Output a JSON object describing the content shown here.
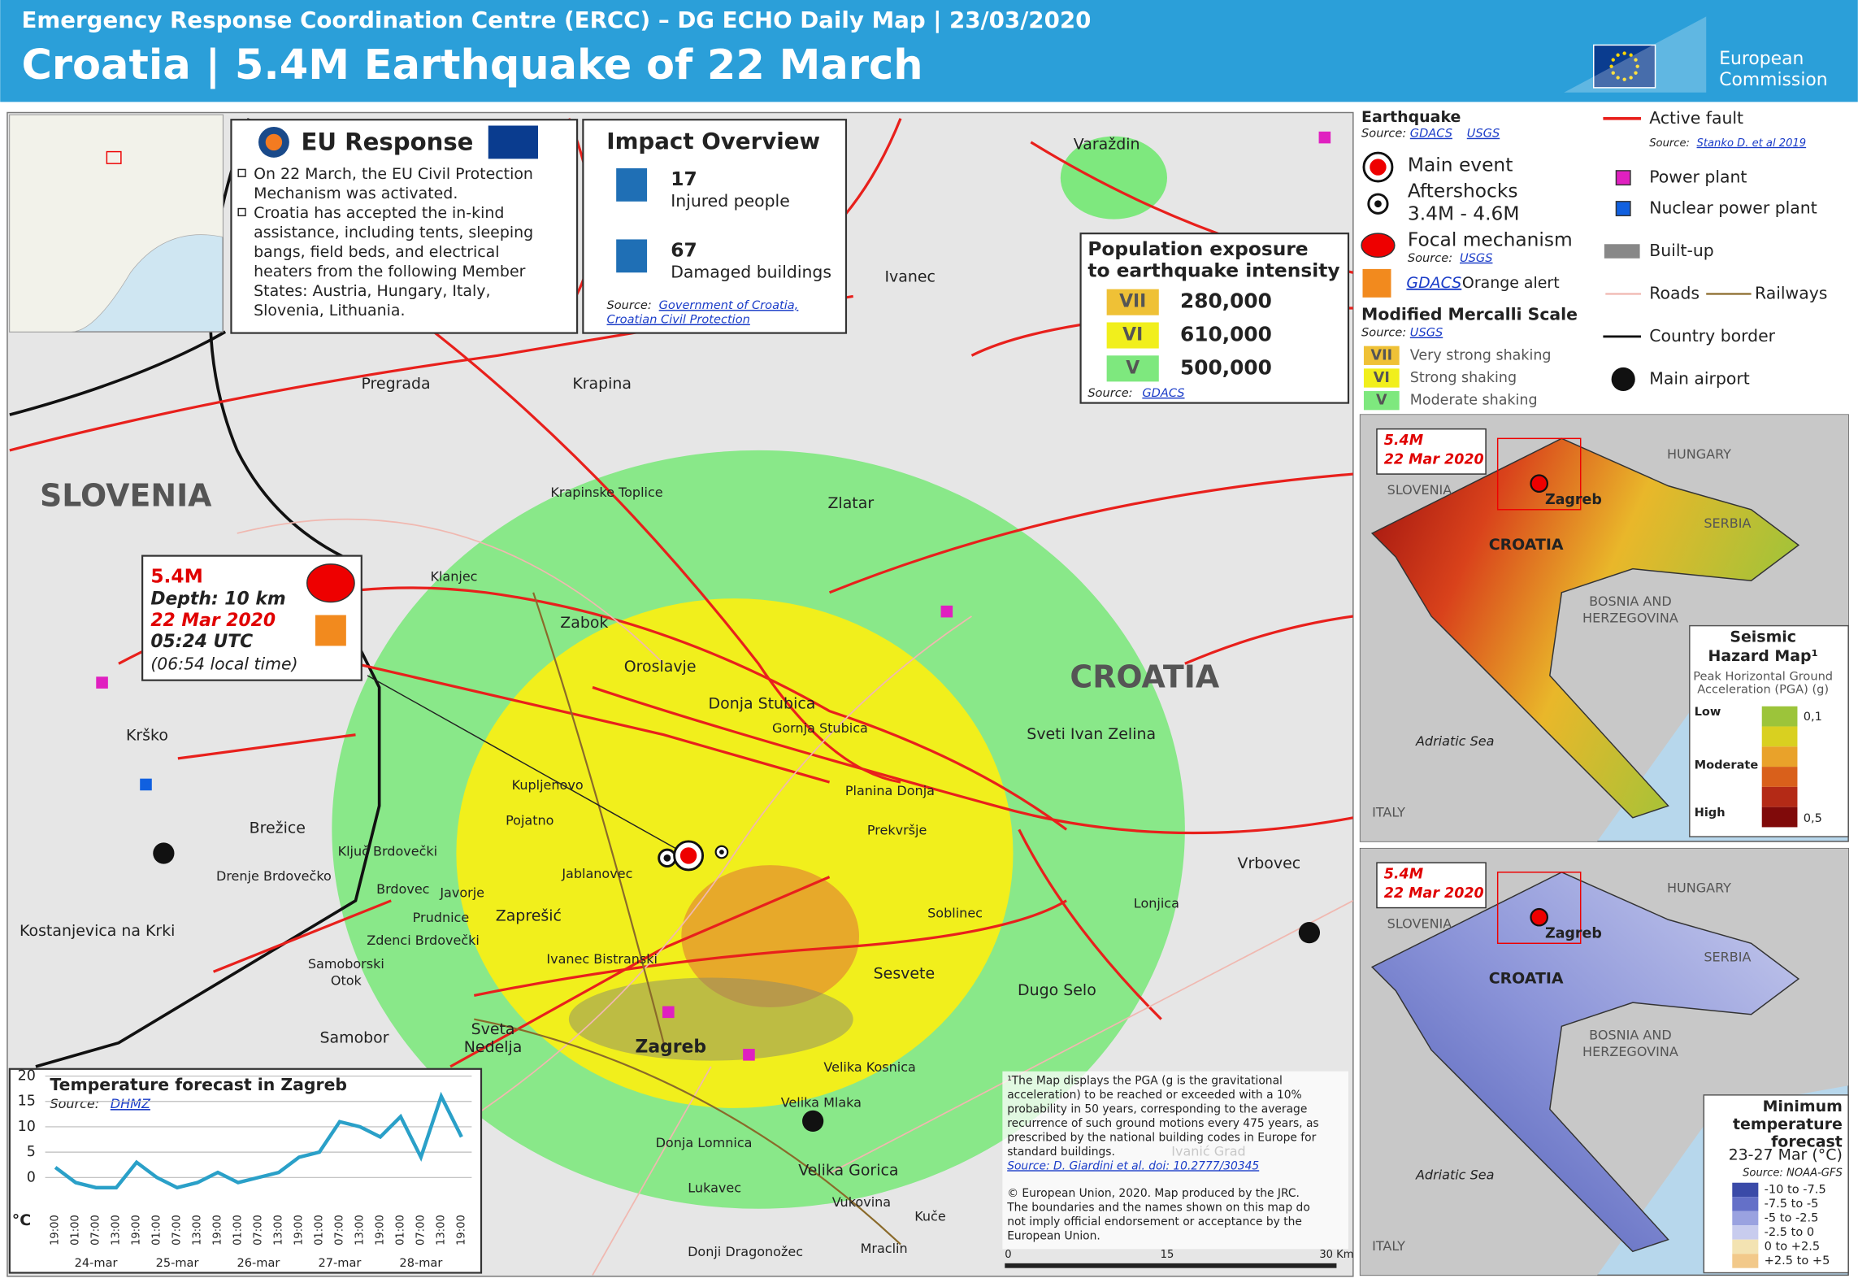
{
  "header": {
    "agency": "Emergency Response Coordination Centre (ERCC) – DG ECHO Daily Map | 23/03/2020",
    "title": "Croatia | 5.4M Earthquake of 22 March",
    "logo": [
      "European",
      "Commission"
    ]
  },
  "eu_response": {
    "title": "EU Response",
    "lines": [
      "On 22 March, the EU Civil Protection",
      "Mechanism was activated.",
      "Croatia has accepted the in-kind",
      "assistance, including tents, sleeping",
      "bangs, field beds, and electrical",
      "heaters from the following Member",
      "States: Austria, Hungary, Italy,",
      "Slovenia, Lithuania."
    ]
  },
  "impact_overview": {
    "title": "Impact Overview",
    "items": [
      {
        "value": "17",
        "label": "Injured people"
      },
      {
        "value": "67",
        "label": "Damaged buildings"
      }
    ],
    "source_label": "Source:",
    "sources": [
      "Government of Croatia,",
      "Croatian Civil Protection"
    ]
  },
  "exposure": {
    "title": [
      "Population exposure",
      "to earthquake intensity"
    ],
    "rows": [
      {
        "intensity": "VII",
        "population": "280,000"
      },
      {
        "intensity": "VI",
        "population": "610,000"
      },
      {
        "intensity": "V",
        "population": "500,000"
      }
    ],
    "source_label": "Source:",
    "source": "GDACS"
  },
  "event_box": {
    "magnitude": "5.4M",
    "depth": "Depth: 10 km",
    "date": "22 Mar 2020",
    "utc": "05:24 UTC",
    "local": "(06:54 local time)"
  },
  "countries": [
    "SLOVENIA",
    "CROATIA"
  ],
  "places": [
    "Varaždin",
    "Ivanec",
    "Pregrada",
    "Krapina",
    "Krapinske Toplice",
    "Zlatar",
    "Klanjec",
    "Zabok",
    "Oroslavje",
    "Donja Stubica",
    "Gornja Stubica",
    "Sveti Ivan Zelina",
    "Krško",
    "Kupljenovo",
    "Planina Donja",
    "Pojatno",
    "Brežice",
    "Prekvršje",
    "Ključ Brdovečki",
    "Jablanovec",
    "Drenje Brdovečko",
    "Brdovec",
    "Javorje",
    "Vrbovec",
    "Prudnice",
    "Zaprešić",
    "Soblinec",
    "Lonjica",
    "Kostanjevica na Krki",
    "Zdenci Brdovečki",
    "Ivanec Bistranski",
    "Samoborski",
    "Otok",
    "Sesvete",
    "Dugo Selo",
    "Sveta",
    "Nedelja",
    "Samobor",
    "Zagreb",
    "Velika Kosnica",
    "Velika Mlaka",
    "Donja Lomnica",
    "Velika Gorica",
    "Lukavec",
    "Vukovina",
    "Kuče",
    "Mraclin",
    "Donji Dragonožec",
    "Ivanić Grad"
  ],
  "legend": {
    "earthquake": {
      "title": "Earthquake",
      "source_label": "Source:",
      "sources": [
        "GDACS",
        "USGS"
      ],
      "main": "Main event",
      "aftershocks": [
        "Aftershocks",
        "3.4M - 4.6M"
      ],
      "focal": "Focal mechanism",
      "focal_source": "USGS",
      "alert_link": "GDACS",
      "alert": "Orange alert"
    },
    "mercalli": {
      "title": "Modified Mercalli Scale",
      "source": "USGS",
      "classes": [
        {
          "code": "VII",
          "label": "Very strong shaking"
        },
        {
          "code": "VI",
          "label": "Strong shaking"
        },
        {
          "code": "V",
          "label": "Moderate shaking"
        }
      ]
    },
    "features": {
      "fault": "Active fault",
      "fault_source": "Stanko D. et al 2019",
      "power": "Power plant",
      "nuclear": "Nuclear power plant",
      "builtup": "Built-up",
      "roads": "Roads",
      "railways": "Railways",
      "border": "Country border",
      "airport": "Main airport"
    }
  },
  "temperature_chart": {
    "title": "Temperature forecast in Zagreb",
    "source_label": "Source:",
    "source": "DHMZ",
    "unit": "°C",
    "x": [
      "19:00",
      "01:00",
      "07:00",
      "13:00",
      "19:00",
      "01:00",
      "07:00",
      "13:00",
      "19:00",
      "01:00",
      "07:00",
      "13:00",
      "19:00",
      "01:00",
      "07:00",
      "13:00",
      "19:00",
      "01:00",
      "07:00",
      "13:00",
      "19:00"
    ],
    "values": [
      2,
      -1,
      -2,
      -2,
      3,
      0,
      -2,
      -1,
      1,
      -1,
      0,
      1,
      4,
      5,
      11,
      10,
      8,
      12,
      4,
      16,
      8
    ],
    "days": [
      "24-mar",
      "25-mar",
      "26-mar",
      "27-mar",
      "28-mar"
    ],
    "ylim": [
      -5,
      20
    ],
    "yticks": [
      0,
      5,
      10,
      15,
      20
    ],
    "color": "#2aa0c8"
  },
  "inset_hazard": {
    "event": [
      "5.4M",
      "22 Mar 2020"
    ],
    "labels": [
      "HUNGARY",
      "SLOVENIA",
      "Zagreb",
      "CROATIA",
      "SERBIA",
      "BOSNIA AND",
      "HERZEGOVINA",
      "Adriatic Sea",
      "ITALY"
    ],
    "legend_title": [
      "Seismic",
      "Hazard Map¹"
    ],
    "legend_sub": [
      "Peak Horizontal Ground",
      "Acceleration (PGA) (g)"
    ],
    "low": "Low",
    "moderate": "Moderate",
    "high": "High",
    "min": "0,1",
    "max": "0,5"
  },
  "inset_temperature": {
    "event": [
      "5.4M",
      "22 Mar 2020"
    ],
    "labels": [
      "HUNGARY",
      "SLOVENIA",
      "Zagreb",
      "CROATIA",
      "SERBIA",
      "BOSNIA AND",
      "HERZEGOVINA",
      "Adriatic Sea",
      "ITALY"
    ],
    "legend_title": [
      "Minimum",
      "temperature",
      "forecast"
    ],
    "period": "23-27 Mar (°C)",
    "source": "Source: NOAA-GFS",
    "classes": [
      "-10 to -7.5",
      "-7.5 to -5",
      "-5 to -2.5",
      "-2.5 to 0",
      "0 to +2.5",
      "+2.5 to +5"
    ]
  },
  "footnote": {
    "lines": [
      "¹The Map displays the PGA (g is the gravitational",
      "acceleration) to be reached or exceeded with a 10%",
      "probability in 50 years, corresponding to the average",
      "recurrence of such ground motions every 475 years, as",
      "prescribed by the national building codes in Europe for",
      "standard buildings."
    ],
    "source": "Source: D. Giardini et al. doi: 10.2777/30345",
    "copyright": [
      "© European Union, 2020. Map produced by the JRC.",
      "The boundaries and the names shown on this map do",
      "not imply official endorsement or acceptance by the",
      "European Union."
    ]
  },
  "scale": [
    "0",
    "15",
    "30 Km"
  ]
}
